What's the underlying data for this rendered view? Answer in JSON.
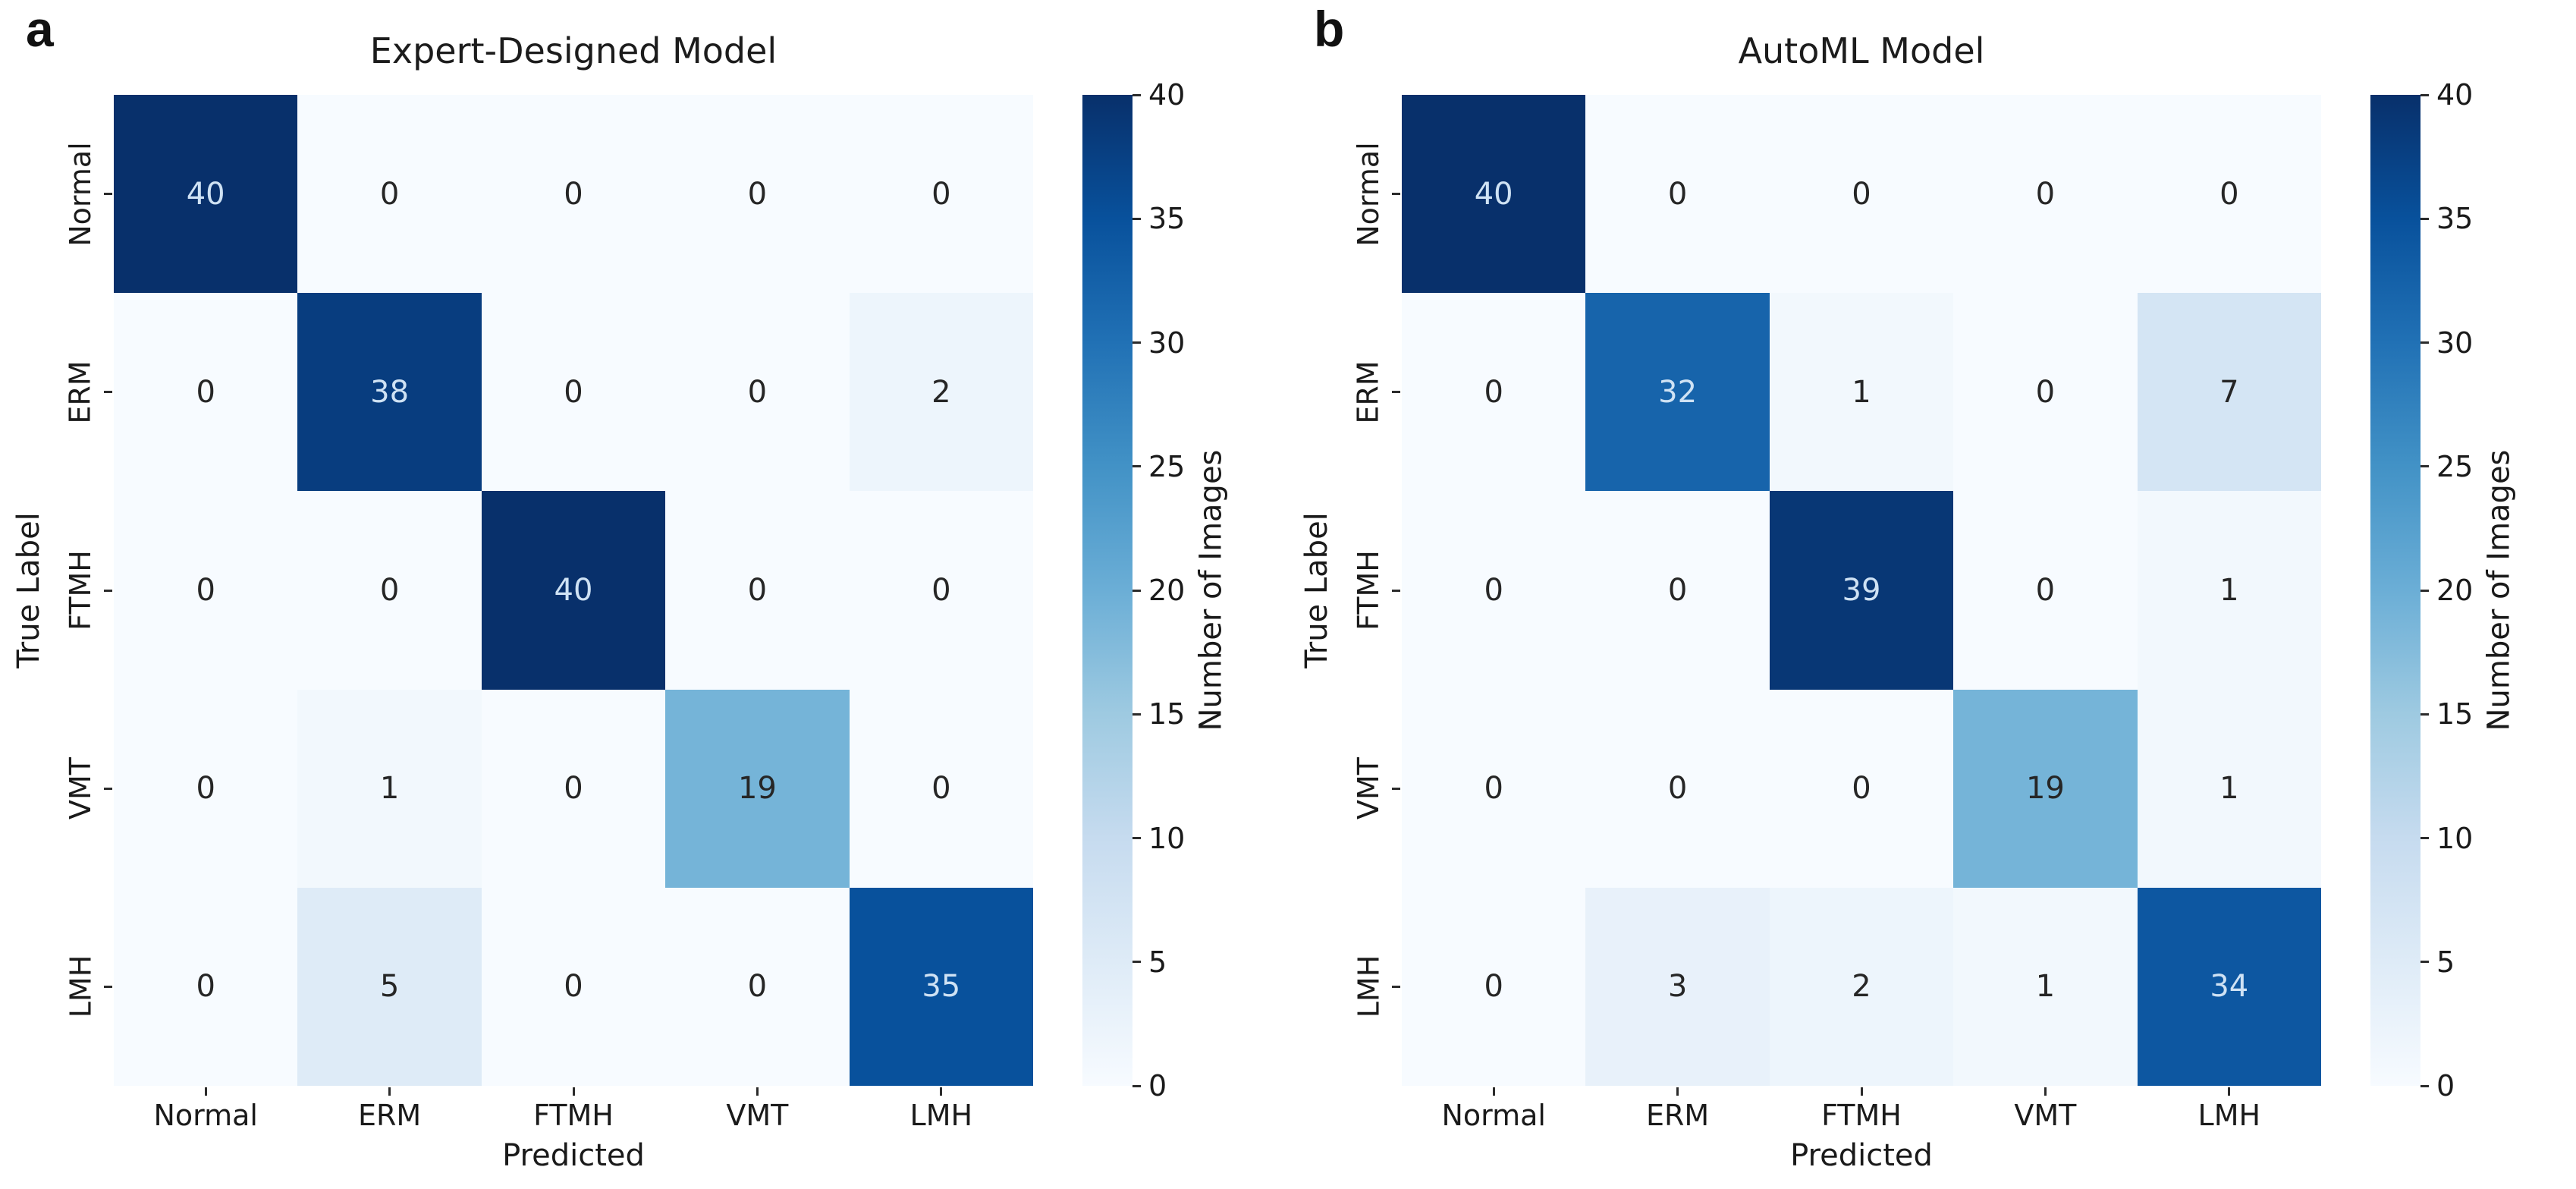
{
  "chart_data": [
    {
      "type": "heatmap",
      "panel_letter": "a",
      "title": "Expert-Designed Model",
      "xlabel": "Predicted",
      "ylabel": "True Label",
      "x_categories": [
        "Normal",
        "ERM",
        "FTMH",
        "VMT",
        "LMH"
      ],
      "y_categories": [
        "Normal",
        "ERM",
        "FTMH",
        "VMT",
        "LMH"
      ],
      "values": [
        [
          40,
          0,
          0,
          0,
          0
        ],
        [
          0,
          38,
          0,
          0,
          2
        ],
        [
          0,
          0,
          40,
          0,
          0
        ],
        [
          0,
          1,
          0,
          19,
          0
        ],
        [
          0,
          5,
          0,
          0,
          35
        ]
      ],
      "vmin": 0,
      "vmax": 40,
      "colormap": "Blues",
      "colorbar_label": "Number of Images",
      "colorbar_ticks": [
        0,
        5,
        10,
        15,
        20,
        25,
        30,
        35,
        40
      ],
      "grid": false,
      "colorbar_position": "right"
    },
    {
      "type": "heatmap",
      "panel_letter": "b",
      "title": "AutoML Model",
      "xlabel": "Predicted",
      "ylabel": "True Label",
      "x_categories": [
        "Normal",
        "ERM",
        "FTMH",
        "VMT",
        "LMH"
      ],
      "y_categories": [
        "Normal",
        "ERM",
        "FTMH",
        "VMT",
        "LMH"
      ],
      "values": [
        [
          40,
          0,
          0,
          0,
          0
        ],
        [
          0,
          32,
          1,
          0,
          7
        ],
        [
          0,
          0,
          39,
          0,
          1
        ],
        [
          0,
          0,
          0,
          19,
          1
        ],
        [
          0,
          3,
          2,
          1,
          34
        ]
      ],
      "vmin": 0,
      "vmax": 40,
      "colormap": "Blues",
      "colorbar_label": "Number of Images",
      "colorbar_ticks": [
        0,
        5,
        10,
        15,
        20,
        25,
        30,
        35,
        40
      ],
      "grid": false,
      "colorbar_position": "right"
    }
  ],
  "colors": {
    "annotation_on_dark": "#cfe2f4",
    "annotation_on_light": "#262626",
    "tick_mark": "#2b2b2b",
    "label_text": "#1a1a1a",
    "background": "#ffffff",
    "colormap_min": "#f7fbff",
    "colormap_max": "#08306b"
  }
}
